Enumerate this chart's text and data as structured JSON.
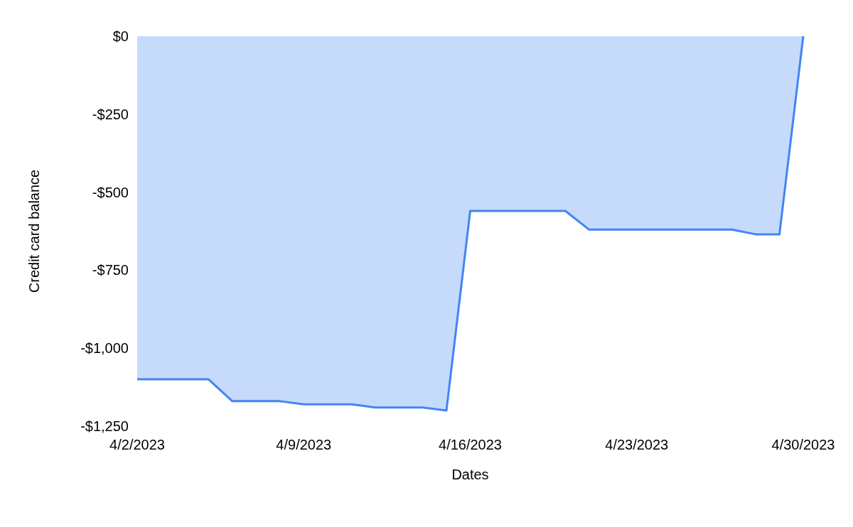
{
  "chart_data": {
    "type": "area",
    "xlabel": "Dates",
    "ylabel": "Credit card balance",
    "x": [
      "2023-04-02",
      "2023-04-05",
      "2023-04-06",
      "2023-04-08",
      "2023-04-09",
      "2023-04-11",
      "2023-04-12",
      "2023-04-14",
      "2023-04-15",
      "2023-04-16",
      "2023-04-20",
      "2023-04-21",
      "2023-04-27",
      "2023-04-28",
      "2023-04-29",
      "2023-04-30"
    ],
    "values": [
      -1100,
      -1100,
      -1170,
      -1170,
      -1180,
      -1180,
      -1190,
      -1190,
      -1200,
      -560,
      -560,
      -620,
      -620,
      -635,
      -635,
      0
    ],
    "color": "#4285f4",
    "xlim": [
      "2023-04-02",
      "2023-04-30"
    ],
    "xticks": [
      {
        "value": "2023-04-02",
        "label": "4/2/2023"
      },
      {
        "value": "2023-04-09",
        "label": "4/9/2023"
      },
      {
        "value": "2023-04-16",
        "label": "4/16/2023"
      },
      {
        "value": "2023-04-23",
        "label": "4/23/2023"
      },
      {
        "value": "2023-04-30",
        "label": "4/30/2023"
      }
    ],
    "ylim": [
      -1250,
      0
    ],
    "yticks": [
      {
        "value": -1250,
        "label": "-$1,250"
      },
      {
        "value": -1000,
        "label": "-$1,000"
      },
      {
        "value": -750,
        "label": "-$750"
      },
      {
        "value": -500,
        "label": "-$500"
      },
      {
        "value": -250,
        "label": "-$250"
      },
      {
        "value": 0,
        "label": "$0"
      }
    ],
    "grid": false
  }
}
